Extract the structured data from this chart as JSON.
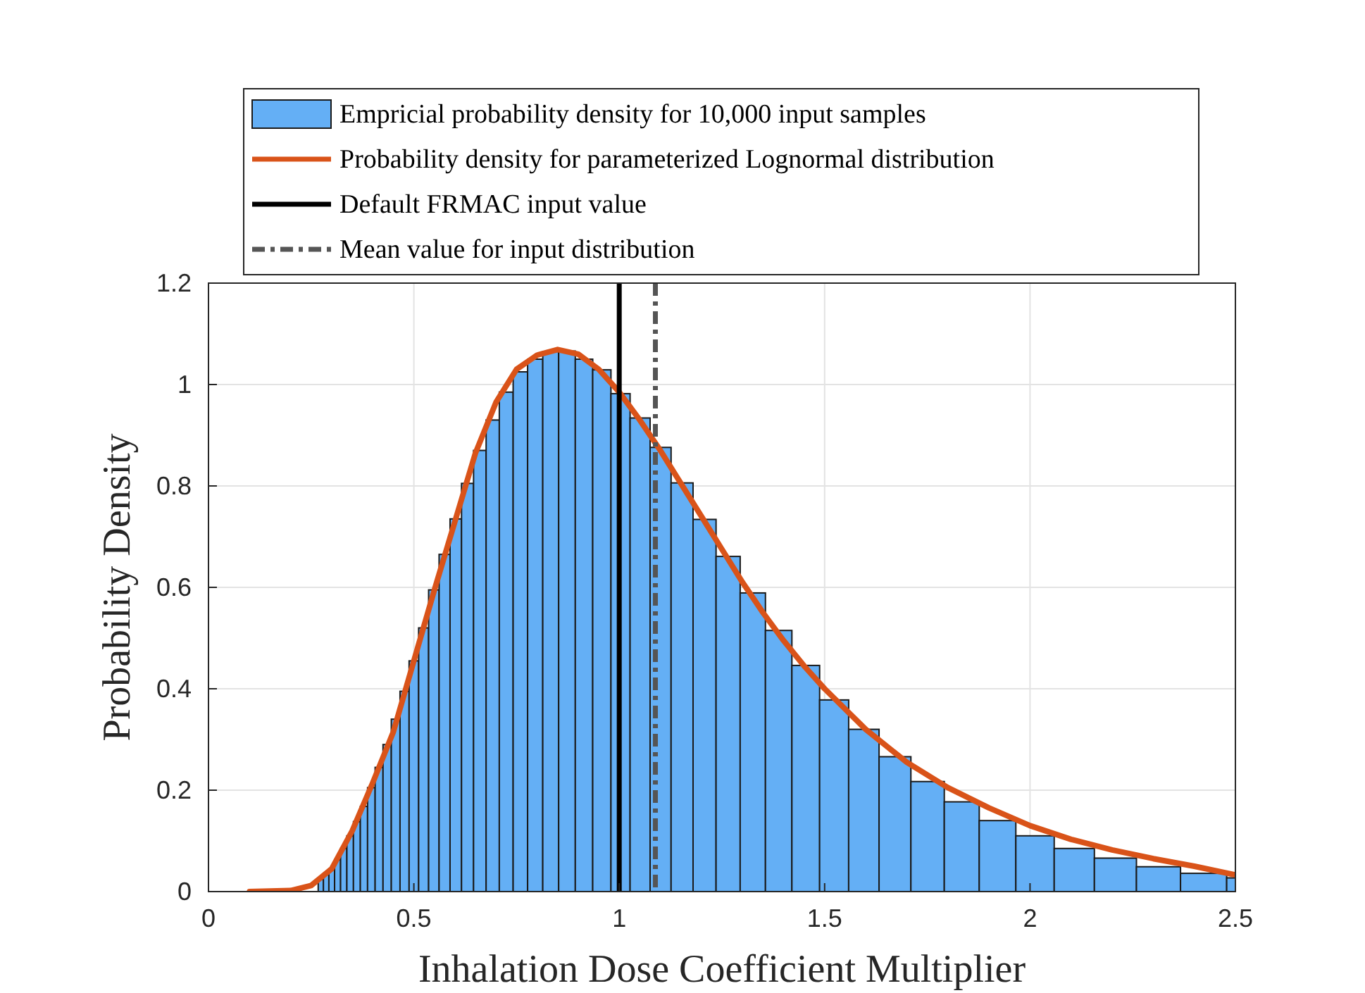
{
  "chart_data": {
    "type": "histogram",
    "xlabel": "Inhalation Dose Coefficient Multiplier",
    "ylabel": "Probability Density",
    "bins": [
      0.2671,
      0.2798,
      0.2931,
      0.307,
      0.3216,
      0.3369,
      0.3529,
      0.3697,
      0.3873,
      0.4057,
      0.4249,
      0.4451,
      0.4663,
      0.4884,
      0.5116,
      0.5359,
      0.5614,
      0.5881,
      0.616,
      0.6453,
      0.6759,
      0.708,
      0.7417,
      0.7769,
      0.8138,
      0.8525,
      0.893,
      0.9354,
      0.9798,
      1.0264,
      1.0751,
      1.1262,
      1.1797,
      1.2357,
      1.2944,
      1.3559,
      1.4203,
      1.4878,
      1.5585,
      1.6325,
      1.71,
      1.7913,
      1.8764,
      1.9655,
      2.0589,
      2.1567,
      2.2591,
      2.3664,
      2.4788,
      2.5
    ],
    "series": [
      {
        "name": "Empricial probability density for 10,000 input samples",
        "color": "#64aff5",
        "values": [
          0.024,
          0.033,
          0.045,
          0.063,
          0.085,
          0.11,
          0.138,
          0.168,
          0.205,
          0.245,
          0.29,
          0.34,
          0.395,
          0.455,
          0.52,
          0.595,
          0.665,
          0.735,
          0.805,
          0.87,
          0.93,
          0.985,
          1.025,
          1.05,
          1.065,
          1.066,
          1.05,
          1.029,
          0.982,
          0.934,
          0.876,
          0.806,
          0.734,
          0.661,
          0.589,
          0.515,
          0.446,
          0.378,
          0.32,
          0.266,
          0.217,
          0.177,
          0.14,
          0.11,
          0.085,
          0.066,
          0.049,
          0.036,
          0.027
        ]
      },
      {
        "type": "line",
        "name": "Probability density for parameterized Lognormal distribution",
        "color": "#d95319",
        "x": [
          0.1,
          0.2,
          0.25,
          0.3,
          0.35,
          0.4,
          0.45,
          0.5,
          0.55,
          0.6,
          0.65,
          0.7,
          0.75,
          0.8,
          0.85,
          0.9,
          0.95,
          1.0,
          1.05,
          1.1,
          1.15,
          1.2,
          1.25,
          1.3,
          1.35,
          1.4,
          1.45,
          1.5,
          1.6,
          1.7,
          1.8,
          1.9,
          2.0,
          2.1,
          2.2,
          2.3,
          2.4,
          2.5
        ],
        "values": [
          0,
          0.002,
          0.012,
          0.045,
          0.12,
          0.215,
          0.315,
          0.455,
          0.595,
          0.73,
          0.865,
          0.965,
          1.03,
          1.058,
          1.069,
          1.06,
          1.03,
          0.985,
          0.93,
          0.87,
          0.805,
          0.74,
          0.675,
          0.61,
          0.55,
          0.495,
          0.445,
          0.4,
          0.32,
          0.255,
          0.205,
          0.165,
          0.13,
          0.103,
          0.082,
          0.065,
          0.05,
          0.033
        ]
      }
    ],
    "ref_lines": [
      {
        "axis": "x",
        "value": 1,
        "label": "Default FRMAC input value",
        "color": "#000000",
        "line_style": "solid"
      },
      {
        "axis": "x",
        "value": 1.088,
        "label": "Mean value for input distribution",
        "color": "#555555",
        "line_style": "dashed"
      }
    ],
    "xlim": [
      0,
      2.5
    ],
    "xticks": [
      0,
      0.5,
      1,
      1.5,
      2,
      2.5
    ],
    "ylim": [
      0,
      1.2
    ],
    "yticks": [
      0,
      0.2,
      0.4,
      0.6,
      0.8,
      1,
      1.2
    ],
    "grid": true,
    "legend": "top"
  }
}
